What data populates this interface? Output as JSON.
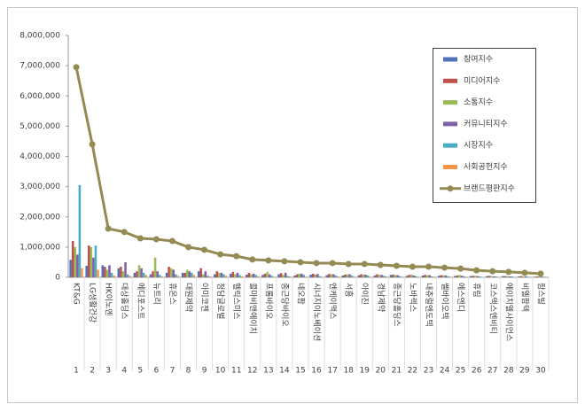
{
  "chart_data": {
    "type": "bar",
    "categories": [
      "KT&G",
      "LG생활건강",
      "HK이노엔",
      "대상홀딩스",
      "메디포스트",
      "뉴트리",
      "휴온스",
      "대원제약",
      "아미코젠",
      "청담글로벌",
      "헬릭스미스",
      "콜마비앤에이치",
      "프롬바이오",
      "종근당바이오",
      "네오팜",
      "시너지이노베이션",
      "엔케이맥스",
      "서흥",
      "아이진",
      "경남제약",
      "종근당홀딩스",
      "노바렉스",
      "내츄럴엔도텍",
      "쎌바이오텍",
      "에스엔디",
      "휴림",
      "코스맥스엔비티",
      "에이치엘사이언스",
      "비엘팜텍",
      "팜스빌"
    ],
    "ranks": [
      1,
      2,
      3,
      4,
      5,
      6,
      7,
      8,
      9,
      10,
      11,
      12,
      13,
      14,
      15,
      16,
      17,
      18,
      19,
      20,
      21,
      22,
      23,
      24,
      25,
      26,
      27,
      28,
      29,
      30
    ],
    "series": [
      {
        "name": "참여지수",
        "color": "#4f72b8",
        "values": [
          580000,
          380000,
          400000,
          300000,
          150000,
          100000,
          150000,
          150000,
          200000,
          100000,
          120000,
          90000,
          80000,
          100000,
          60000,
          90000,
          70000,
          60000,
          70000,
          60000,
          80000,
          50000,
          60000,
          50000,
          40000,
          40000,
          40000,
          40000,
          30000,
          20000
        ]
      },
      {
        "name": "미디어지수",
        "color": "#c0504d",
        "values": [
          1200000,
          1050000,
          350000,
          350000,
          200000,
          200000,
          350000,
          150000,
          300000,
          200000,
          180000,
          150000,
          120000,
          140000,
          100000,
          120000,
          110000,
          90000,
          100000,
          100000,
          90000,
          80000,
          80000,
          70000,
          60000,
          50000,
          50000,
          40000,
          40000,
          30000
        ]
      },
      {
        "name": "소통지수",
        "color": "#9bbb59",
        "values": [
          1000000,
          1000000,
          250000,
          200000,
          400000,
          650000,
          300000,
          250000,
          100000,
          150000,
          100000,
          100000,
          180000,
          80000,
          120000,
          90000,
          100000,
          100000,
          90000,
          80000,
          70000,
          90000,
          70000,
          70000,
          80000,
          50000,
          40000,
          40000,
          30000,
          30000
        ]
      },
      {
        "name": "커뮤니티지수",
        "color": "#7f62a8",
        "values": [
          750000,
          650000,
          400000,
          500000,
          300000,
          200000,
          250000,
          200000,
          200000,
          150000,
          150000,
          120000,
          100000,
          150000,
          120000,
          110000,
          100000,
          100000,
          90000,
          80000,
          70000,
          60000,
          70000,
          60000,
          50000,
          40000,
          30000,
          30000,
          30000,
          20000
        ]
      },
      {
        "name": "시장지수",
        "color": "#4bacc6",
        "values": [
          3050000,
          1050000,
          150000,
          100000,
          150000,
          80000,
          100000,
          150000,
          50000,
          100000,
          70000,
          80000,
          50000,
          40000,
          80000,
          40000,
          60000,
          60000,
          60000,
          50000,
          40000,
          40000,
          30000,
          40000,
          40000,
          30000,
          30000,
          30000,
          20000,
          20000
        ]
      },
      {
        "name": "사회공헌지수",
        "color": "#f79646",
        "values": [
          300000,
          250000,
          60000,
          50000,
          80000,
          30000,
          50000,
          80000,
          30000,
          50000,
          30000,
          40000,
          20000,
          30000,
          20000,
          20000,
          30000,
          20000,
          20000,
          30000,
          20000,
          20000,
          20000,
          20000,
          20000,
          10000,
          10000,
          10000,
          10000,
          10000
        ]
      },
      {
        "name": "브랜드평판지수",
        "color": "#948a54",
        "type": "line",
        "values": [
          6950000,
          4400000,
          1610000,
          1500000,
          1290000,
          1260000,
          1200000,
          1000000,
          910000,
          760000,
          700000,
          590000,
          560000,
          530000,
          500000,
          470000,
          470000,
          440000,
          440000,
          410000,
          380000,
          350000,
          350000,
          320000,
          290000,
          230000,
          200000,
          180000,
          150000,
          120000
        ]
      }
    ],
    "ylim": [
      0,
      8000000
    ],
    "yticks": [
      0,
      {
        "value": 1000000,
        "label": "1,000,000"
      },
      {
        "value": 2000000,
        "label": "2,000,000"
      },
      {
        "value": 3000000,
        "label": "3,000,000"
      },
      {
        "value": 4000000,
        "label": "4,000,000"
      },
      {
        "value": 5000000,
        "label": "5,000,000"
      },
      {
        "value": 6000000,
        "label": "6,000,000"
      },
      {
        "value": 7000000,
        "label": "7,000,000"
      },
      {
        "value": 8000000,
        "label": "8,000,000"
      }
    ],
    "legend": "upper right"
  }
}
